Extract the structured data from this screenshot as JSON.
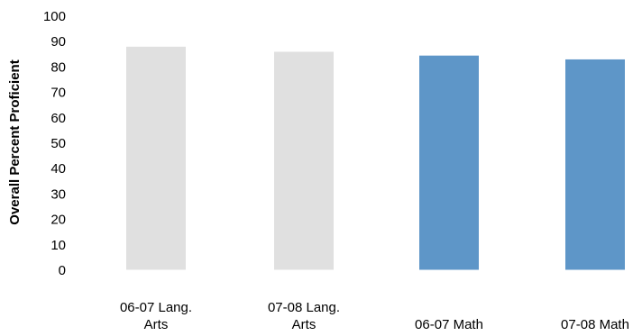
{
  "chart_data": {
    "type": "bar",
    "title": "",
    "xlabel": "",
    "ylabel": "Overall Percent Proficient",
    "ylim": [
      0,
      100
    ],
    "yticks": [
      0,
      10,
      20,
      30,
      40,
      50,
      60,
      70,
      80,
      90,
      100
    ],
    "grid": false,
    "categories": [
      [
        "06-07 Lang.",
        "Arts"
      ],
      [
        "07-08 Lang.",
        "Arts"
      ],
      [
        "06-07 Math"
      ],
      [
        "07-08 Math"
      ]
    ],
    "values": [
      88,
      86,
      84.5,
      83
    ],
    "colors": [
      "#e0e0e0",
      "#e0e0e0",
      "#5e96c8",
      "#5e96c8"
    ]
  }
}
